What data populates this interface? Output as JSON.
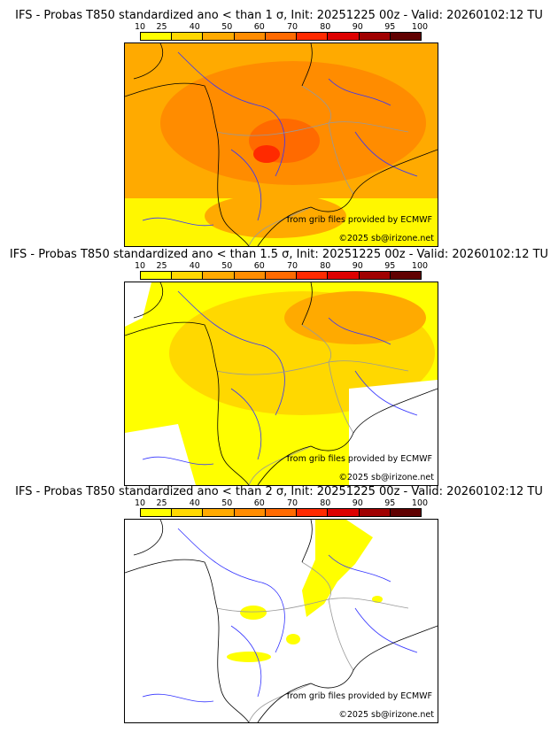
{
  "colorbar": {
    "ticks": [
      "10",
      "25",
      "40",
      "50",
      "60",
      "70",
      "80",
      "90",
      "95",
      "100"
    ],
    "colors": [
      "#ffff00",
      "#ffd800",
      "#ffaa00",
      "#ff8c00",
      "#ff6a00",
      "#ff2a00",
      "#dd0000",
      "#a00000",
      "#600000"
    ]
  },
  "panels": [
    {
      "title": "IFS - Probas T850  standardized ano < than 1 σ, Init: 20251225 00z - Valid: 20260102:12 TU",
      "level": 1
    },
    {
      "title": "IFS - Probas T850  standardized ano < than 1.5 σ, Init: 20251225 00z - Valid: 20260102:12 TU",
      "level": 2
    },
    {
      "title": "IFS - Probas T850  standardized ano < than 2 σ, Init: 20251225 00z - Valid: 20260102:12 TU",
      "level": 3
    }
  ],
  "credits": {
    "source": "from grib files provided by ECMWF",
    "copyright": "©2025 sb@irizone.net"
  }
}
